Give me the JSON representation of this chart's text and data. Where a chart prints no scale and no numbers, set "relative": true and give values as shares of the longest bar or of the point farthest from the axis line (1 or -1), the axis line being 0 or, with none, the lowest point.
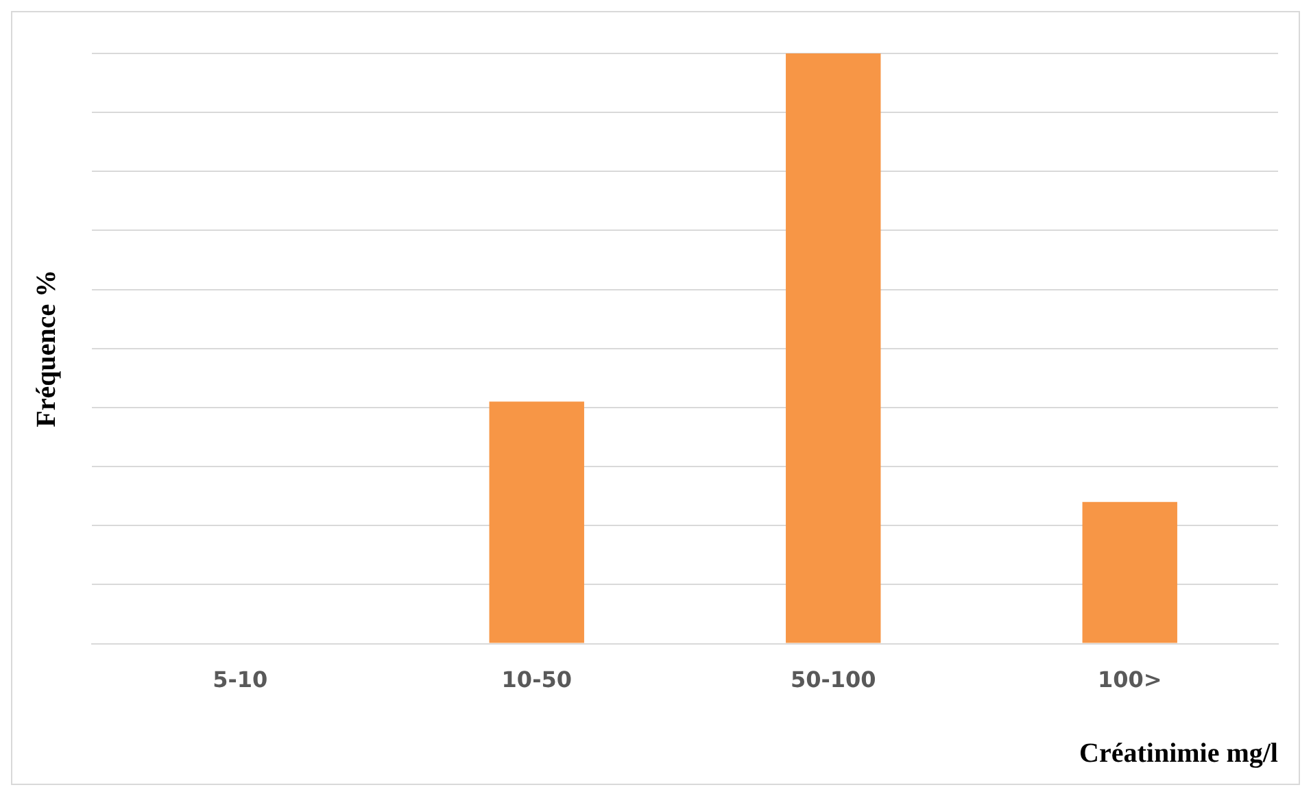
{
  "chart_data": {
    "type": "bar",
    "relative": true,
    "xlabel": "Créatinimie mg/l",
    "ylabel": "Fréquence %",
    "categories": [
      "5-10",
      "10-50",
      "50-100",
      "100>"
    ],
    "values": [
      0,
      0.41,
      1,
      0.24
    ],
    "color": "#f79646",
    "grid": "y"
  }
}
